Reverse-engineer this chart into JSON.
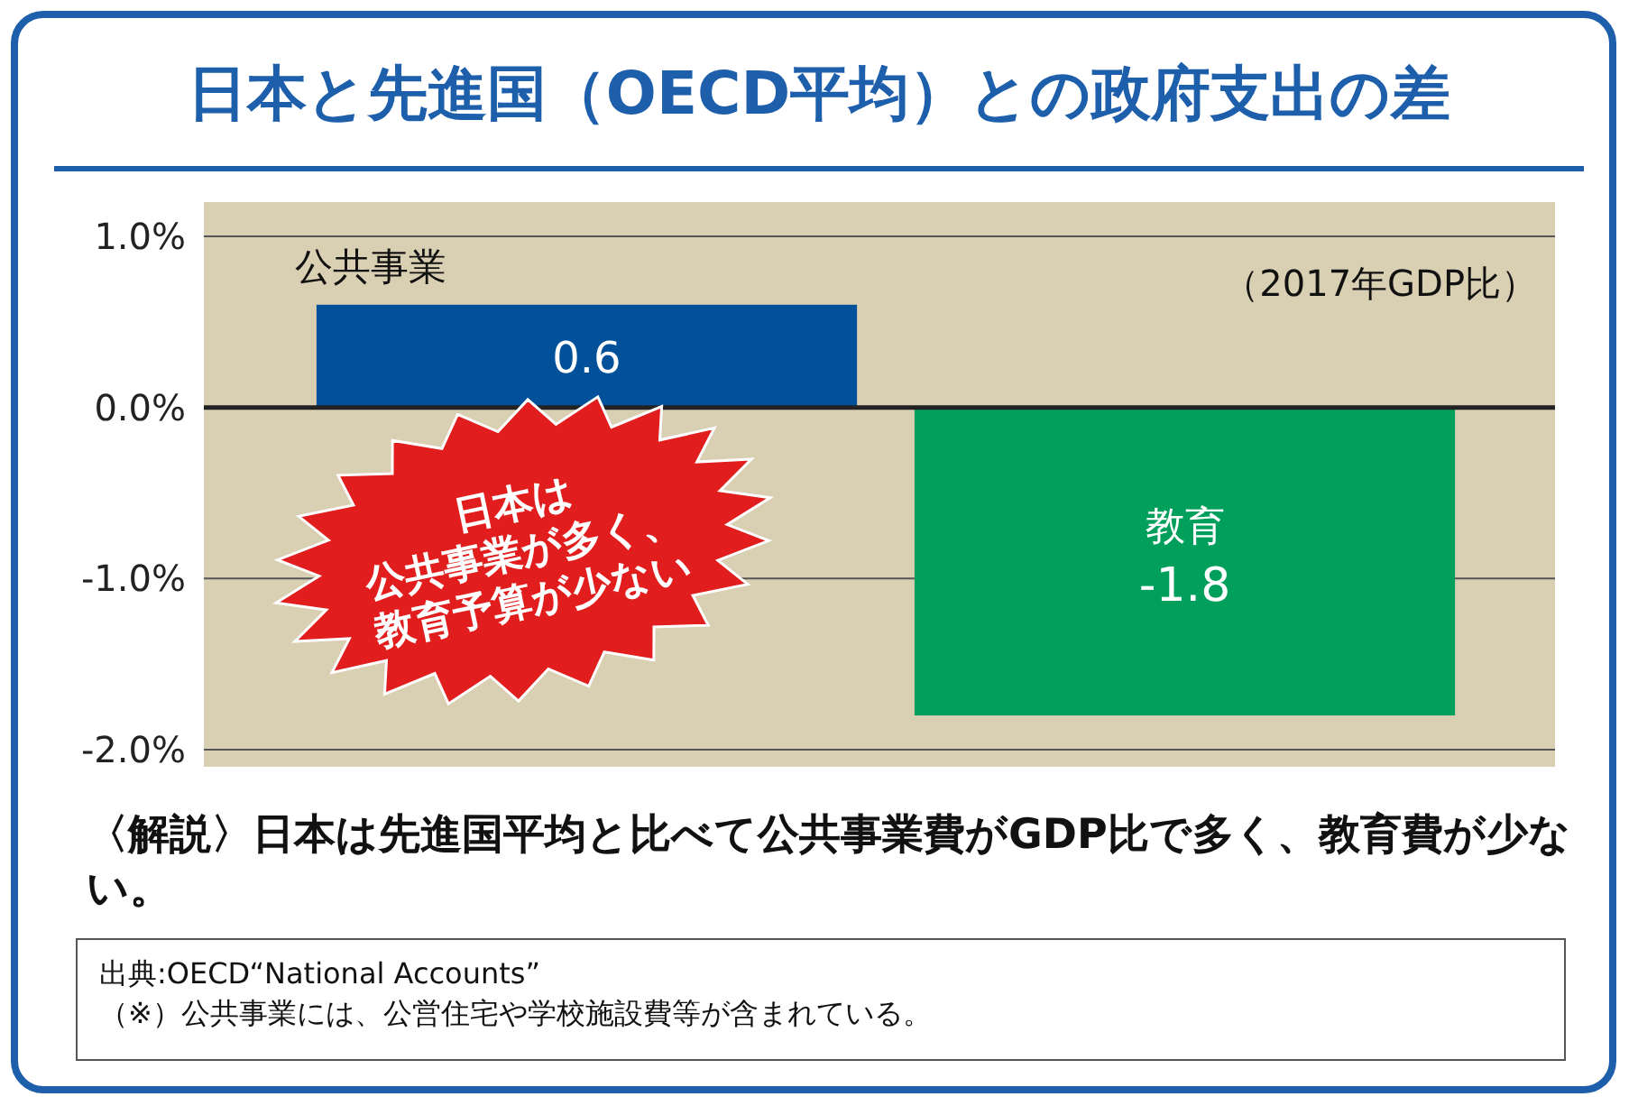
{
  "chart_data": {
    "type": "bar",
    "title": "日本と先進国（OECD平均）との政府支出の差",
    "subtitle": "（2017年GDP比）",
    "categories": [
      "公共事業",
      "教育"
    ],
    "values": [
      0.6,
      -1.8
    ],
    "colors": [
      "#00509a",
      "#00a05c"
    ],
    "ylim": [
      -2.1,
      1.2
    ],
    "yticks": [
      {
        "value": 1,
        "label": "1.0%"
      },
      {
        "value": 0,
        "label": "0.0%"
      },
      {
        "value": -1,
        "label": "-1.0%"
      },
      {
        "value": -2,
        "label": "-2.0%"
      }
    ],
    "grid": "y",
    "data_labels": true,
    "annotations": [
      "日本は\n公共事業が多く、\n教育予算が少ない",
      "〈解説〉日本は先進国平均と比べて公共事業費がGDP比で多く、教育費が少ない。",
      "出典:OECD“National Accounts”",
      "（※）公共事業には、公営住宅や学校施設費等が含まれている。"
    ]
  }
}
